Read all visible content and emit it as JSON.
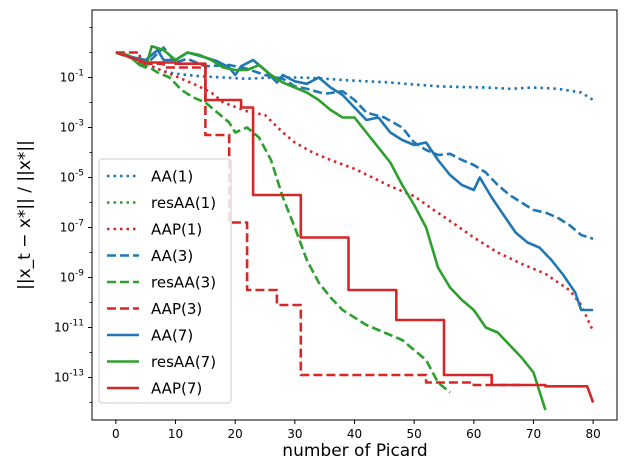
{
  "chart_data": {
    "type": "line",
    "title": "",
    "xlabel": "number of Picard",
    "ylabel": "||x_t − x*|| / ||x*||",
    "yscale": "log",
    "xlim": [
      -4,
      84
    ],
    "ylim_exponents": [
      -14.7,
      1.7
    ],
    "xticks": [
      0,
      10,
      20,
      30,
      40,
      50,
      60,
      70,
      80
    ],
    "yticks": [
      {
        "exp": -1,
        "label": "10^-1"
      },
      {
        "exp": -3,
        "label": "10^-3"
      },
      {
        "exp": -5,
        "label": "10^-5"
      },
      {
        "exp": -7,
        "label": "10^-7"
      },
      {
        "exp": -9,
        "label": "10^-9"
      },
      {
        "exp": -11,
        "label": "10^-11"
      },
      {
        "exp": -13,
        "label": "10^-13"
      }
    ],
    "legend": "lower-left",
    "series": [
      {
        "name": "AA(1)",
        "color": "#1f77b4",
        "dash": "dotted",
        "log10_points": [
          [
            0,
            0
          ],
          [
            3,
            -0.25
          ],
          [
            6,
            -0.55
          ],
          [
            8,
            -0.75
          ],
          [
            10,
            -0.85
          ],
          [
            14,
            -0.95
          ],
          [
            18,
            -1.0
          ],
          [
            22,
            -1.05
          ],
          [
            26,
            -1.0
          ],
          [
            30,
            -1.0
          ],
          [
            34,
            -1.03
          ],
          [
            38,
            -1.1
          ],
          [
            42,
            -1.15
          ],
          [
            46,
            -1.2
          ],
          [
            50,
            -1.28
          ],
          [
            54,
            -1.35
          ],
          [
            58,
            -1.38
          ],
          [
            62,
            -1.4
          ],
          [
            66,
            -1.45
          ],
          [
            70,
            -1.4
          ],
          [
            74,
            -1.45
          ],
          [
            78,
            -1.6
          ],
          [
            80,
            -1.9
          ]
        ]
      },
      {
        "name": "resAA(1)",
        "color": "#2ca02c",
        "dash": "dotted",
        "log10_points": []
      },
      {
        "name": "AAP(1)",
        "color": "#d62728",
        "dash": "dotted",
        "log10_points": [
          [
            0,
            0
          ],
          [
            3,
            -0.2
          ],
          [
            6,
            -0.55
          ],
          [
            10,
            -0.95
          ],
          [
            13,
            -1.25
          ],
          [
            16,
            -1.6
          ],
          [
            18,
            -2.0
          ],
          [
            22,
            -2.35
          ],
          [
            25,
            -2.5
          ],
          [
            28,
            -3.2
          ],
          [
            30,
            -3.6
          ],
          [
            33,
            -4.0
          ],
          [
            36,
            -4.3
          ],
          [
            40,
            -4.65
          ],
          [
            43,
            -5.0
          ],
          [
            46,
            -5.35
          ],
          [
            50,
            -5.75
          ],
          [
            53,
            -6.25
          ],
          [
            57,
            -6.9
          ],
          [
            60,
            -7.4
          ],
          [
            64,
            -8.0
          ],
          [
            68,
            -8.45
          ],
          [
            72,
            -8.85
          ],
          [
            76,
            -9.5
          ],
          [
            78,
            -10.1
          ],
          [
            80,
            -11.15
          ]
        ]
      },
      {
        "name": "AA(3)",
        "color": "#1f77b4",
        "dash": "dashed",
        "log10_points": [
          [
            0,
            0
          ],
          [
            3,
            -0.25
          ],
          [
            5,
            -0.5
          ],
          [
            8,
            0.2
          ],
          [
            10,
            -0.4
          ],
          [
            12,
            -0.25
          ],
          [
            15,
            -0.55
          ],
          [
            19,
            -0.5
          ],
          [
            22,
            -0.65
          ],
          [
            25,
            -0.9
          ],
          [
            28,
            -1.05
          ],
          [
            30,
            -1.35
          ],
          [
            32,
            -1.45
          ],
          [
            35,
            -1.65
          ],
          [
            38,
            -1.55
          ],
          [
            40,
            -1.9
          ],
          [
            42,
            -2.4
          ],
          [
            45,
            -2.6
          ],
          [
            48,
            -3.0
          ],
          [
            50,
            -3.6
          ],
          [
            52,
            -3.9
          ],
          [
            54,
            -4.1
          ],
          [
            56,
            -4.05
          ],
          [
            58,
            -4.3
          ],
          [
            60,
            -4.5
          ],
          [
            62,
            -4.8
          ],
          [
            64,
            -5.3
          ],
          [
            66,
            -5.7
          ],
          [
            68,
            -6.0
          ],
          [
            70,
            -6.3
          ],
          [
            72,
            -6.4
          ],
          [
            74,
            -6.6
          ],
          [
            76,
            -6.9
          ],
          [
            78,
            -7.3
          ],
          [
            80,
            -7.45
          ]
        ]
      },
      {
        "name": "resAA(3)",
        "color": "#2ca02c",
        "dash": "dashed",
        "log10_points": [
          [
            0,
            0
          ],
          [
            3,
            -0.25
          ],
          [
            5,
            -0.5
          ],
          [
            7,
            -0.8
          ],
          [
            9,
            -1.0
          ],
          [
            11,
            -1.5
          ],
          [
            13,
            -1.8
          ],
          [
            15,
            -2.0
          ],
          [
            17,
            -2.4
          ],
          [
            19,
            -2.8
          ],
          [
            20,
            -3.2
          ],
          [
            22,
            -3.0
          ],
          [
            24,
            -3.4
          ],
          [
            26,
            -4.3
          ],
          [
            28,
            -5.8
          ],
          [
            30,
            -7.0
          ],
          [
            32,
            -8.3
          ],
          [
            34,
            -9.2
          ],
          [
            36,
            -9.8
          ],
          [
            38,
            -10.3
          ],
          [
            40,
            -10.6
          ],
          [
            42,
            -10.9
          ],
          [
            44,
            -11.1
          ],
          [
            46,
            -11.3
          ],
          [
            48,
            -11.5
          ],
          [
            50,
            -11.9
          ],
          [
            52,
            -12.3
          ],
          [
            54,
            -13.2
          ],
          [
            55,
            -13.4
          ],
          [
            56,
            -13.6
          ]
        ]
      },
      {
        "name": "AAP(3)",
        "color": "#d62728",
        "dash": "dashed",
        "log10_points": [
          [
            0,
            0
          ],
          [
            4,
            0
          ],
          [
            4,
            -0.45
          ],
          [
            8,
            -0.45
          ],
          [
            8,
            -0.6
          ],
          [
            15,
            -0.6
          ],
          [
            15,
            -3.3
          ],
          [
            19,
            -3.3
          ],
          [
            19,
            -6.8
          ],
          [
            22,
            -6.8
          ],
          [
            22,
            -9.5
          ],
          [
            27,
            -9.5
          ],
          [
            27,
            -10.1
          ],
          [
            31,
            -10.1
          ],
          [
            31,
            -12.9
          ],
          [
            52,
            -12.9
          ],
          [
            52,
            -13.2
          ],
          [
            60,
            -13.2
          ],
          [
            60,
            -13.3
          ],
          [
            68,
            -13.3
          ]
        ]
      },
      {
        "name": "AA(7)",
        "color": "#1f77b4",
        "dash": "solid",
        "log10_points": [
          [
            0,
            0
          ],
          [
            3,
            -0.2
          ],
          [
            5,
            -0.3
          ],
          [
            7,
            0.1
          ],
          [
            8,
            -0.3
          ],
          [
            10,
            -0.3
          ],
          [
            12,
            0.0
          ],
          [
            15,
            -0.2
          ],
          [
            17,
            -0.35
          ],
          [
            19,
            -0.6
          ],
          [
            20,
            -0.9
          ],
          [
            21,
            -0.55
          ],
          [
            23,
            -0.3
          ],
          [
            25,
            -0.7
          ],
          [
            27,
            -1.2
          ],
          [
            28,
            -0.9
          ],
          [
            30,
            -1.15
          ],
          [
            32,
            -1.25
          ],
          [
            34,
            -1.0
          ],
          [
            36,
            -1.4
          ],
          [
            38,
            -1.7
          ],
          [
            40,
            -2.2
          ],
          [
            42,
            -2.7
          ],
          [
            44,
            -2.6
          ],
          [
            46,
            -3.2
          ],
          [
            48,
            -3.5
          ],
          [
            50,
            -3.7
          ],
          [
            52,
            -3.6
          ],
          [
            54,
            -4.3
          ],
          [
            56,
            -4.9
          ],
          [
            58,
            -5.3
          ],
          [
            60,
            -5.5
          ],
          [
            61,
            -5.0
          ],
          [
            63,
            -5.8
          ],
          [
            65,
            -6.5
          ],
          [
            67,
            -7.2
          ],
          [
            69,
            -7.6
          ],
          [
            71,
            -7.8
          ],
          [
            73,
            -8.3
          ],
          [
            75,
            -8.9
          ],
          [
            77,
            -9.6
          ],
          [
            78,
            -10.3
          ],
          [
            80,
            -10.3
          ]
        ]
      },
      {
        "name": "resAA(7)",
        "color": "#2ca02c",
        "dash": "solid",
        "log10_points": [
          [
            0,
            0
          ],
          [
            2,
            -0.1
          ],
          [
            4,
            -0.5
          ],
          [
            5,
            -0.6
          ],
          [
            6,
            0.25
          ],
          [
            8,
            0.1
          ],
          [
            10,
            -0.3
          ],
          [
            12,
            0.0
          ],
          [
            14,
            -0.1
          ],
          [
            16,
            -0.3
          ],
          [
            18,
            -0.6
          ],
          [
            20,
            -0.7
          ],
          [
            22,
            -0.7
          ],
          [
            24,
            -0.5
          ],
          [
            26,
            -0.9
          ],
          [
            28,
            -1.2
          ],
          [
            30,
            -1.4
          ],
          [
            32,
            -1.6
          ],
          [
            34,
            -1.9
          ],
          [
            36,
            -2.3
          ],
          [
            38,
            -2.6
          ],
          [
            40,
            -2.6
          ],
          [
            42,
            -3.2
          ],
          [
            44,
            -3.8
          ],
          [
            46,
            -4.4
          ],
          [
            48,
            -5.3
          ],
          [
            50,
            -6.1
          ],
          [
            52,
            -7.0
          ],
          [
            54,
            -8.6
          ],
          [
            56,
            -9.4
          ],
          [
            58,
            -9.9
          ],
          [
            60,
            -10.3
          ],
          [
            62,
            -11.0
          ],
          [
            64,
            -11.2
          ],
          [
            66,
            -11.7
          ],
          [
            68,
            -12.2
          ],
          [
            70,
            -12.8
          ],
          [
            72,
            -14.3
          ]
        ]
      },
      {
        "name": "AAP(7)",
        "color": "#d62728",
        "dash": "solid",
        "log10_points": [
          [
            0,
            0
          ],
          [
            5,
            -0.4
          ],
          [
            10,
            -0.4
          ],
          [
            10,
            -0.45
          ],
          [
            15,
            -0.45
          ],
          [
            15,
            -1.9
          ],
          [
            21,
            -1.9
          ],
          [
            21,
            -2.2
          ],
          [
            23,
            -2.2
          ],
          [
            23,
            -5.7
          ],
          [
            31,
            -5.7
          ],
          [
            31,
            -7.4
          ],
          [
            39,
            -7.4
          ],
          [
            39,
            -9.5
          ],
          [
            47,
            -9.5
          ],
          [
            47,
            -10.7
          ],
          [
            55,
            -10.7
          ],
          [
            55,
            -12.9
          ],
          [
            63,
            -12.9
          ],
          [
            63,
            -13.3
          ],
          [
            72,
            -13.3
          ],
          [
            72,
            -13.35
          ],
          [
            79,
            -13.35
          ],
          [
            80,
            -14.0
          ]
        ]
      }
    ]
  }
}
